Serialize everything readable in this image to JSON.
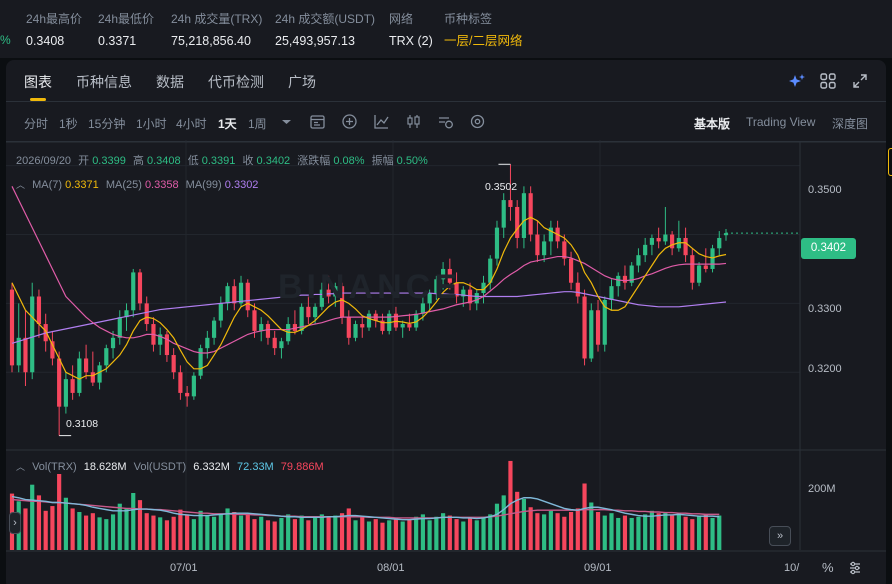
{
  "stats": {
    "pct_edge": "%",
    "items": [
      {
        "label": "24h最高价",
        "value": "0.3408"
      },
      {
        "label": "24h最低价",
        "value": "0.3371"
      },
      {
        "label": "24h 成交量(TRX)",
        "value": "75,218,856.40"
      },
      {
        "label": "24h 成交额(USDT)",
        "value": "25,493,957.13"
      },
      {
        "label": "网络",
        "value": "TRX (2)"
      },
      {
        "label": "币种标签",
        "value": "一层/二层网络"
      }
    ]
  },
  "tabs": [
    "图表",
    "币种信息",
    "数据",
    "代币检测",
    "广场"
  ],
  "tab_icons": [
    "ai-sparkle-icon",
    "grid-layout-icon",
    "expand-icon"
  ],
  "timeframes": [
    "分时",
    "1秒",
    "15分钟",
    "1小时",
    "4小时",
    "1天",
    "1周"
  ],
  "active_timeframe": "1天",
  "tool_icons": [
    "indicator-icon",
    "add-circle-icon",
    "line-chart-icon",
    "candle-style-icon",
    "refresh-settings-icon",
    "settings-icon"
  ],
  "versions": [
    "基本版",
    "Trading View",
    "深度图"
  ],
  "active_version": "基本版",
  "ohlc": {
    "date": "2026/09/20",
    "open_label": "开",
    "open": "0.3399",
    "high_label": "高",
    "high": "0.3408",
    "low_label": "低",
    "low": "0.3391",
    "close_label": "收",
    "close": "0.3402",
    "change_label": "涨跌幅",
    "change": "0.08%",
    "amp_label": "振幅",
    "amp": "0.50%"
  },
  "ma": {
    "ma7_label": "MA(7)",
    "ma7": "0.3371",
    "ma25_label": "MA(25)",
    "ma25": "0.3358",
    "ma99_label": "MA(99)",
    "ma99": "0.3302"
  },
  "vol": {
    "trx_label": "Vol(TRX)",
    "trx": "18.628M",
    "usdt_label": "Vol(USDT)",
    "usdt": "6.332M",
    "usdt_ma1": "72.33M",
    "usdt_ma2": "79.886M"
  },
  "y_ticks": [
    "0.3500",
    "0.3400",
    "0.3300",
    "0.3200"
  ],
  "vol_tick": "200M",
  "x_ticks": [
    "07/01",
    "08/01",
    "09/01",
    "10/"
  ],
  "last_price": "0.3402",
  "high_callout": "0.3502",
  "low_callout": "0.3108",
  "watermark": "BINANCE",
  "colors": {
    "up": "#2ebd85",
    "down": "#f6465d",
    "ma7": "#f0b90b",
    "ma25": "#e05ca8",
    "ma99": "#b07ef0",
    "accent": "#f0b90b"
  },
  "footer_icons": [
    "percent-icon",
    "settings-gear-icon",
    "scroll-right-icon",
    "scroll-left-icon"
  ],
  "chart_data": {
    "type": "candlestick",
    "ylim": [
      0.309,
      0.353
    ],
    "ohlc": [
      [
        0.332,
        0.333,
        0.32,
        0.321
      ],
      [
        0.321,
        0.33,
        0.32,
        0.325
      ],
      [
        0.325,
        0.329,
        0.318,
        0.32
      ],
      [
        0.32,
        0.333,
        0.319,
        0.331
      ],
      [
        0.331,
        0.332,
        0.325,
        0.327
      ],
      [
        0.327,
        0.3285,
        0.323,
        0.3245
      ],
      [
        0.3245,
        0.326,
        0.321,
        0.322
      ],
      [
        0.322,
        0.323,
        0.3108,
        0.315
      ],
      [
        0.315,
        0.32,
        0.314,
        0.319
      ],
      [
        0.319,
        0.321,
        0.316,
        0.317
      ],
      [
        0.317,
        0.323,
        0.3165,
        0.322
      ],
      [
        0.322,
        0.324,
        0.319,
        0.32
      ],
      [
        0.32,
        0.323,
        0.318,
        0.3185
      ],
      [
        0.3185,
        0.3215,
        0.3175,
        0.321
      ],
      [
        0.321,
        0.324,
        0.32,
        0.3235
      ],
      [
        0.3235,
        0.326,
        0.322,
        0.325
      ],
      [
        0.325,
        0.329,
        0.324,
        0.328
      ],
      [
        0.328,
        0.33,
        0.326,
        0.329
      ],
      [
        0.329,
        0.335,
        0.328,
        0.3345
      ],
      [
        0.3345,
        0.335,
        0.329,
        0.33
      ],
      [
        0.33,
        0.331,
        0.326,
        0.327
      ],
      [
        0.327,
        0.328,
        0.323,
        0.324
      ],
      [
        0.324,
        0.3265,
        0.3225,
        0.3255
      ],
      [
        0.3255,
        0.326,
        0.3215,
        0.3225
      ],
      [
        0.3225,
        0.3235,
        0.319,
        0.32
      ],
      [
        0.32,
        0.321,
        0.316,
        0.317
      ],
      [
        0.317,
        0.318,
        0.315,
        0.3165
      ],
      [
        0.3165,
        0.32,
        0.316,
        0.3195
      ],
      [
        0.3195,
        0.324,
        0.319,
        0.3235
      ],
      [
        0.3235,
        0.326,
        0.322,
        0.325
      ],
      [
        0.325,
        0.328,
        0.324,
        0.3275
      ],
      [
        0.3275,
        0.331,
        0.3265,
        0.33
      ],
      [
        0.33,
        0.333,
        0.329,
        0.3325
      ],
      [
        0.3325,
        0.3335,
        0.329,
        0.33
      ],
      [
        0.33,
        0.334,
        0.3295,
        0.333
      ],
      [
        0.333,
        0.3335,
        0.328,
        0.329
      ],
      [
        0.329,
        0.33,
        0.325,
        0.326
      ],
      [
        0.326,
        0.328,
        0.3245,
        0.327
      ],
      [
        0.327,
        0.3275,
        0.324,
        0.325
      ],
      [
        0.325,
        0.326,
        0.3225,
        0.3235
      ],
      [
        0.3235,
        0.325,
        0.322,
        0.3245
      ],
      [
        0.3245,
        0.328,
        0.324,
        0.327
      ],
      [
        0.327,
        0.329,
        0.3255,
        0.326
      ],
      [
        0.326,
        0.33,
        0.3255,
        0.3295
      ],
      [
        0.3295,
        0.331,
        0.327,
        0.328
      ],
      [
        0.328,
        0.33,
        0.327,
        0.3295
      ],
      [
        0.3295,
        0.333,
        0.329,
        0.332
      ],
      [
        0.332,
        0.334,
        0.33,
        0.331
      ],
      [
        0.331,
        0.333,
        0.3295,
        0.3325
      ],
      [
        0.3325,
        0.333,
        0.327,
        0.328
      ],
      [
        0.328,
        0.329,
        0.324,
        0.325
      ],
      [
        0.325,
        0.3275,
        0.3245,
        0.327
      ],
      [
        0.327,
        0.328,
        0.325,
        0.3265
      ],
      [
        0.3265,
        0.329,
        0.326,
        0.3285
      ],
      [
        0.3285,
        0.329,
        0.3265,
        0.3275
      ],
      [
        0.3275,
        0.3285,
        0.3255,
        0.326
      ],
      [
        0.326,
        0.329,
        0.3255,
        0.3285
      ],
      [
        0.3285,
        0.3295,
        0.326,
        0.3265
      ],
      [
        0.3265,
        0.3275,
        0.325,
        0.327
      ],
      [
        0.327,
        0.3285,
        0.326,
        0.3265
      ],
      [
        0.3265,
        0.329,
        0.326,
        0.3285
      ],
      [
        0.3285,
        0.331,
        0.3275,
        0.33
      ],
      [
        0.33,
        0.332,
        0.329,
        0.3315
      ],
      [
        0.3315,
        0.334,
        0.3305,
        0.3335
      ],
      [
        0.3335,
        0.336,
        0.332,
        0.335
      ],
      [
        0.335,
        0.3365,
        0.332,
        0.333
      ],
      [
        0.333,
        0.3345,
        0.33,
        0.331
      ],
      [
        0.331,
        0.3325,
        0.3295,
        0.332
      ],
      [
        0.332,
        0.333,
        0.329,
        0.33
      ],
      [
        0.33,
        0.332,
        0.329,
        0.3315
      ],
      [
        0.3315,
        0.334,
        0.33,
        0.333
      ],
      [
        0.333,
        0.337,
        0.332,
        0.3365
      ],
      [
        0.3365,
        0.342,
        0.3355,
        0.341
      ],
      [
        0.341,
        0.346,
        0.3395,
        0.345
      ],
      [
        0.345,
        0.3502,
        0.342,
        0.344
      ],
      [
        0.344,
        0.345,
        0.338,
        0.3395
      ],
      [
        0.3395,
        0.347,
        0.338,
        0.346
      ],
      [
        0.346,
        0.347,
        0.339,
        0.34
      ],
      [
        0.34,
        0.342,
        0.336,
        0.337
      ],
      [
        0.337,
        0.34,
        0.336,
        0.339
      ],
      [
        0.339,
        0.342,
        0.337,
        0.341
      ],
      [
        0.341,
        0.342,
        0.338,
        0.339
      ],
      [
        0.339,
        0.34,
        0.3355,
        0.3365
      ],
      [
        0.3365,
        0.3375,
        0.332,
        0.333
      ],
      [
        0.333,
        0.3345,
        0.33,
        0.331
      ],
      [
        0.331,
        0.332,
        0.321,
        0.322
      ],
      [
        0.322,
        0.33,
        0.3215,
        0.329
      ],
      [
        0.329,
        0.3305,
        0.323,
        0.324
      ],
      [
        0.324,
        0.331,
        0.323,
        0.3305
      ],
      [
        0.3305,
        0.3335,
        0.329,
        0.3325
      ],
      [
        0.3325,
        0.3345,
        0.331,
        0.334
      ],
      [
        0.334,
        0.3355,
        0.332,
        0.333
      ],
      [
        0.333,
        0.336,
        0.3325,
        0.3355
      ],
      [
        0.3355,
        0.338,
        0.3345,
        0.337
      ],
      [
        0.337,
        0.3395,
        0.336,
        0.3385
      ],
      [
        0.3385,
        0.34,
        0.337,
        0.3395
      ],
      [
        0.3395,
        0.341,
        0.338,
        0.339
      ],
      [
        0.339,
        0.344,
        0.3385,
        0.34
      ],
      [
        0.34,
        0.3405,
        0.337,
        0.338
      ],
      [
        0.338,
        0.342,
        0.3375,
        0.3395
      ],
      [
        0.3395,
        0.341,
        0.336,
        0.337
      ],
      [
        0.337,
        0.338,
        0.332,
        0.333
      ],
      [
        0.333,
        0.336,
        0.3325,
        0.3355
      ],
      [
        0.3355,
        0.338,
        0.3345,
        0.335
      ],
      [
        0.335,
        0.3385,
        0.3345,
        0.338
      ],
      [
        0.338,
        0.3405,
        0.337,
        0.3395
      ],
      [
        0.3399,
        0.3408,
        0.3391,
        0.3402
      ]
    ],
    "volume": [
      95,
      82,
      70,
      110,
      92,
      66,
      74,
      128,
      88,
      70,
      64,
      58,
      62,
      55,
      52,
      60,
      78,
      70,
      96,
      84,
      62,
      58,
      55,
      50,
      56,
      68,
      60,
      52,
      66,
      58,
      56,
      60,
      70,
      64,
      58,
      62,
      52,
      56,
      50,
      48,
      54,
      60,
      52,
      58,
      50,
      54,
      60,
      56,
      58,
      62,
      70,
      50,
      56,
      48,
      52,
      46,
      50,
      54,
      48,
      52,
      56,
      60,
      50,
      56,
      62,
      58,
      52,
      48,
      54,
      50,
      56,
      60,
      78,
      92,
      150,
      98,
      86,
      72,
      62,
      60,
      66,
      62,
      56,
      64,
      70,
      112,
      80,
      64,
      58,
      62,
      54,
      58,
      54,
      56,
      60,
      66,
      62,
      64,
      58,
      62,
      56,
      52,
      58,
      60,
      54,
      58
    ],
    "ma7": [
      0.333,
      0.331,
      0.329,
      0.328,
      0.327,
      0.326,
      0.324,
      0.322,
      0.32,
      0.3195,
      0.319,
      0.3195,
      0.3195,
      0.32,
      0.3205,
      0.3215,
      0.3225,
      0.324,
      0.326,
      0.3275,
      0.328,
      0.3278,
      0.3272,
      0.3262,
      0.325,
      0.3232,
      0.3215,
      0.3205,
      0.3205,
      0.321,
      0.3225,
      0.324,
      0.326,
      0.328,
      0.3295,
      0.33,
      0.3295,
      0.329,
      0.3282,
      0.3272,
      0.3262,
      0.3258,
      0.3258,
      0.3262,
      0.3268,
      0.3275,
      0.3285,
      0.3295,
      0.3302,
      0.3305,
      0.33,
      0.3292,
      0.3282,
      0.3278,
      0.3275,
      0.3272,
      0.3272,
      0.3274,
      0.3273,
      0.3271,
      0.3273,
      0.328,
      0.329,
      0.3302,
      0.3316,
      0.3325,
      0.333,
      0.333,
      0.3326,
      0.332,
      0.332,
      0.333,
      0.335,
      0.3375,
      0.3395,
      0.3408,
      0.342,
      0.3425,
      0.342,
      0.341,
      0.3405,
      0.34,
      0.3395,
      0.3385,
      0.337,
      0.3345,
      0.333,
      0.331,
      0.3295,
      0.329,
      0.329,
      0.3295,
      0.331,
      0.3325,
      0.334,
      0.3355,
      0.337,
      0.338,
      0.3385,
      0.3388,
      0.3388,
      0.338,
      0.3372,
      0.3368,
      0.3366,
      0.3369,
      0.3371
    ],
    "ma25": [
      0.347,
      0.345,
      0.343,
      0.341,
      0.339,
      0.337,
      0.335,
      0.333,
      0.331,
      0.33,
      0.329,
      0.328,
      0.3272,
      0.3265,
      0.326,
      0.3255,
      0.3252,
      0.325,
      0.325,
      0.3252,
      0.3255,
      0.3255,
      0.3252,
      0.3248,
      0.3242,
      0.3238,
      0.3234,
      0.323,
      0.3228,
      0.3228,
      0.323,
      0.3235,
      0.324,
      0.3245,
      0.325,
      0.3255,
      0.3258,
      0.326,
      0.3262,
      0.3262,
      0.3262,
      0.3262,
      0.3264,
      0.3266,
      0.3268,
      0.327,
      0.3272,
      0.3275,
      0.3278,
      0.328,
      0.328,
      0.328,
      0.328,
      0.328,
      0.328,
      0.328,
      0.328,
      0.3281,
      0.3282,
      0.3283,
      0.3284,
      0.3286,
      0.3288,
      0.329,
      0.3292,
      0.3295,
      0.3298,
      0.33,
      0.3302,
      0.3305,
      0.331,
      0.3318,
      0.3326,
      0.3335,
      0.3342,
      0.3348,
      0.3355,
      0.336,
      0.3362,
      0.3364,
      0.3366,
      0.3368,
      0.3368,
      0.3366,
      0.3362,
      0.3358,
      0.3352,
      0.3346,
      0.334,
      0.3336,
      0.3334,
      0.3333,
      0.3334,
      0.3336,
      0.334,
      0.3343,
      0.3347,
      0.3351,
      0.3354,
      0.3356,
      0.3357,
      0.3357,
      0.3357,
      0.3357,
      0.3357,
      0.3357,
      0.3358
    ],
    "ma99": [
      0.3242,
      0.3245,
      0.3248,
      0.3251,
      0.3254,
      0.3257,
      0.3259,
      0.3261,
      0.3263,
      0.3265,
      0.3267,
      0.3269,
      0.3271,
      0.3273,
      0.3275,
      0.3277,
      0.3279,
      0.3281,
      0.3283,
      0.3285,
      0.3287,
      0.3289,
      0.3291,
      0.3292,
      0.3293,
      0.3294,
      0.3295,
      0.3296,
      0.3297,
      0.3298,
      0.3299,
      0.33,
      0.3301,
      0.3302,
      0.3303,
      0.3304,
      0.3305,
      0.3306,
      0.3307,
      0.3308,
      0.3309,
      0.331,
      0.3311,
      0.3312,
      0.3312,
      0.3313,
      0.3313,
      0.3314,
      0.3314,
      0.3315,
      0.3315,
      0.3315,
      0.3315,
      0.3315,
      0.3315,
      0.3315,
      0.3315,
      0.3315,
      0.3315,
      0.3315,
      0.3315,
      0.3315,
      0.3315,
      0.3314,
      0.3314,
      0.3313,
      0.3313,
      0.3312,
      0.3311,
      0.331,
      0.331,
      0.331,
      0.331,
      0.331,
      0.331,
      0.331,
      0.3311,
      0.3312,
      0.3313,
      0.3314,
      0.3315,
      0.3316,
      0.3317,
      0.3317,
      0.3316,
      0.3314,
      0.3312,
      0.331,
      0.3308,
      0.3306,
      0.3304,
      0.3302,
      0.33,
      0.3298,
      0.3297,
      0.3296,
      0.3295,
      0.3295,
      0.3295,
      0.3295,
      0.3296,
      0.3297,
      0.3298,
      0.3299,
      0.33,
      0.3301,
      0.3302
    ],
    "vol_ma1": [
      90,
      88,
      85,
      84,
      83,
      82,
      80,
      80,
      79,
      78,
      77,
      75,
      72,
      70,
      68,
      66,
      66,
      66,
      68,
      69,
      69,
      68,
      67,
      65,
      62,
      60,
      59,
      58,
      58,
      58,
      59,
      60,
      61,
      62,
      62,
      62,
      61,
      60,
      59,
      58,
      57,
      56,
      56,
      55,
      55,
      55,
      55,
      56,
      56,
      57,
      58,
      58,
      57,
      56,
      55,
      54,
      53,
      52,
      51,
      51,
      52,
      53,
      53,
      54,
      55,
      55,
      55,
      54,
      54,
      53,
      54,
      56,
      60,
      68,
      78,
      84,
      88,
      88,
      86,
      82,
      78,
      74,
      70,
      68,
      67,
      70,
      72,
      72,
      70,
      68,
      65,
      62,
      60,
      58,
      57,
      57,
      58,
      59,
      59,
      60,
      59,
      58,
      57,
      57,
      57,
      56
    ],
    "vol_ma2": [
      85,
      84,
      83,
      82,
      82,
      81,
      80,
      80,
      79,
      78,
      77,
      76,
      75,
      74,
      73,
      72,
      71,
      70,
      70,
      69,
      69,
      68,
      68,
      67,
      66,
      65,
      64,
      63,
      62,
      62,
      61,
      61,
      61,
      60,
      60,
      60,
      59,
      59,
      58,
      58,
      57,
      57,
      57,
      56,
      56,
      56,
      56,
      56,
      56,
      56,
      56,
      56,
      56,
      55,
      55,
      55,
      55,
      54,
      54,
      54,
      54,
      54,
      54,
      54,
      55,
      55,
      55,
      55,
      55,
      55,
      55,
      56,
      57,
      59,
      61,
      63,
      65,
      66,
      67,
      67,
      67,
      67,
      67,
      67,
      67,
      68,
      68,
      68,
      68,
      67,
      67,
      66,
      66,
      65,
      65,
      64,
      64,
      63,
      63,
      62,
      62,
      61,
      61,
      60,
      60,
      60
    ]
  }
}
